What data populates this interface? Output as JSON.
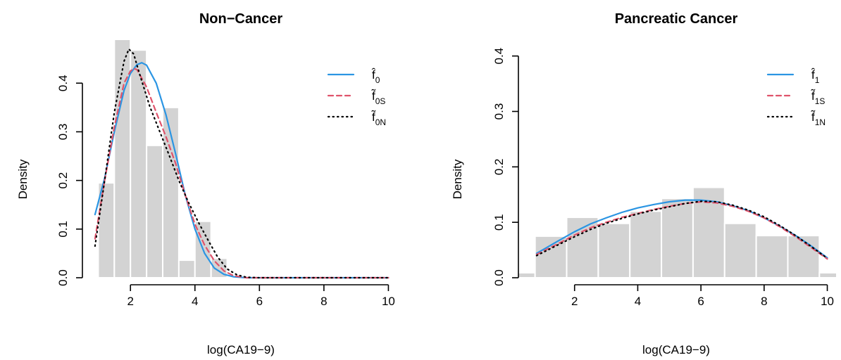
{
  "figure": {
    "colors": {
      "bar_fill": "#d3d3d3",
      "bar_stroke": "#ffffff"
    }
  },
  "chart_data": [
    {
      "type": "histogram-with-density",
      "title": "Non−Cancer",
      "xlabel": "log(CA19−9)",
      "ylabel": "Density",
      "xlim": [
        0.75,
        10.1
      ],
      "ylim": [
        0,
        0.49
      ],
      "xticks": [
        2,
        4,
        6,
        8,
        10
      ],
      "yticks": [
        0.0,
        0.1,
        0.2,
        0.3,
        0.4
      ],
      "xtick_labels": [
        "2",
        "4",
        "6",
        "8",
        "10"
      ],
      "ytick_labels": [
        "0.0",
        "0.1",
        "0.2",
        "0.3",
        "0.4"
      ],
      "histogram": {
        "bin_width": 0.5,
        "bins": [
          {
            "x0": 1.0,
            "x1": 1.5,
            "density": 0.195
          },
          {
            "x0": 1.5,
            "x1": 2.0,
            "density": 0.49
          },
          {
            "x0": 2.0,
            "x1": 2.5,
            "density": 0.468
          },
          {
            "x0": 2.5,
            "x1": 3.0,
            "density": 0.272
          },
          {
            "x0": 3.0,
            "x1": 3.5,
            "density": 0.35
          },
          {
            "x0": 3.5,
            "x1": 4.0,
            "density": 0.036
          },
          {
            "x0": 4.0,
            "x1": 4.5,
            "density": 0.116
          },
          {
            "x0": 4.5,
            "x1": 5.0,
            "density": 0.04
          }
        ]
      },
      "legend": {
        "position": "top-right",
        "entries": [
          {
            "symbol": "f̂",
            "subscript": "0",
            "color": "#2b95e3",
            "style": "solid"
          },
          {
            "symbol": "f̃",
            "subscript": "0S",
            "color": "#df536b",
            "style": "dashed"
          },
          {
            "symbol": "f̃",
            "subscript": "0N",
            "color": "#000000",
            "style": "dotted"
          }
        ]
      },
      "series": [
        {
          "color": "#2b95e3",
          "style": "solid",
          "x": [
            0.9,
            1.2,
            1.5,
            1.8,
            2.0,
            2.2,
            2.35,
            2.5,
            2.8,
            3.1,
            3.4,
            3.7,
            4.0,
            4.3,
            4.6,
            4.9,
            5.2,
            5.6,
            6.0,
            7.0,
            8.0,
            9.0,
            10.0
          ],
          "y": [
            0.13,
            0.205,
            0.3,
            0.385,
            0.42,
            0.438,
            0.442,
            0.437,
            0.4,
            0.335,
            0.255,
            0.17,
            0.1,
            0.05,
            0.02,
            0.007,
            0.002,
            0.0,
            0.0,
            0.0,
            0.0,
            0.0,
            0.0
          ]
        },
        {
          "color": "#df536b",
          "style": "dashed",
          "x": [
            0.9,
            1.2,
            1.5,
            1.8,
            2.0,
            2.1,
            2.2,
            2.5,
            2.8,
            3.1,
            3.4,
            3.7,
            4.0,
            4.3,
            4.6,
            4.9,
            5.2,
            5.6,
            6.0,
            7.0,
            8.0,
            9.0,
            10.0
          ],
          "y": [
            0.08,
            0.2,
            0.31,
            0.4,
            0.425,
            0.43,
            0.428,
            0.392,
            0.34,
            0.29,
            0.235,
            0.17,
            0.11,
            0.067,
            0.035,
            0.014,
            0.004,
            0.0,
            0.0,
            0.0,
            0.0,
            0.0,
            0.0
          ]
        },
        {
          "color": "#000000",
          "style": "dotted",
          "x": [
            0.9,
            1.2,
            1.5,
            1.8,
            1.95,
            2.1,
            2.3,
            2.6,
            2.9,
            3.2,
            3.5,
            3.8,
            4.1,
            4.4,
            4.7,
            5.0,
            5.3,
            5.6,
            6.0,
            7.0,
            8.0,
            9.0,
            10.0
          ],
          "y": [
            0.065,
            0.2,
            0.34,
            0.445,
            0.47,
            0.46,
            0.415,
            0.352,
            0.302,
            0.252,
            0.2,
            0.155,
            0.115,
            0.078,
            0.043,
            0.018,
            0.006,
            0.001,
            0.0,
            0.0,
            0.0,
            0.0,
            0.0
          ]
        }
      ]
    },
    {
      "type": "histogram-with-density",
      "title": "Pancreatic Cancer",
      "xlabel": "log(CA19−9)",
      "ylabel": "Density",
      "xlim": [
        0.2,
        10.3
      ],
      "ylim": [
        0,
        0.43
      ],
      "xticks": [
        2,
        4,
        6,
        8,
        10
      ],
      "yticks": [
        0.0,
        0.1,
        0.2,
        0.3,
        0.4
      ],
      "xtick_labels": [
        "2",
        "4",
        "6",
        "8",
        "10"
      ],
      "ytick_labels": [
        "0.0",
        "0.1",
        "0.2",
        "0.3",
        "0.4"
      ],
      "histogram": {
        "bin_width": 1,
        "bins": [
          {
            "x0": -0.25,
            "x1": 0.75,
            "density": 0.009
          },
          {
            "x0": 0.75,
            "x1": 1.75,
            "density": 0.075
          },
          {
            "x0": 1.75,
            "x1": 2.75,
            "density": 0.109
          },
          {
            "x0": 2.75,
            "x1": 3.75,
            "density": 0.098
          },
          {
            "x0": 3.75,
            "x1": 4.75,
            "density": 0.12
          },
          {
            "x0": 4.75,
            "x1": 5.75,
            "density": 0.143
          },
          {
            "x0": 5.75,
            "x1": 6.75,
            "density": 0.163
          },
          {
            "x0": 6.75,
            "x1": 7.75,
            "density": 0.098
          },
          {
            "x0": 7.75,
            "x1": 8.75,
            "density": 0.076
          },
          {
            "x0": 8.75,
            "x1": 9.75,
            "density": 0.076
          },
          {
            "x0": 9.75,
            "x1": 10.75,
            "density": 0.009
          }
        ]
      },
      "legend": {
        "position": "top-right",
        "entries": [
          {
            "symbol": "f̂",
            "subscript": "1",
            "color": "#2b95e3",
            "style": "solid"
          },
          {
            "symbol": "f̃",
            "subscript": "1S",
            "color": "#df536b",
            "style": "dashed"
          },
          {
            "symbol": "f̃",
            "subscript": "1N",
            "color": "#000000",
            "style": "dotted"
          }
        ]
      },
      "series": [
        {
          "color": "#2b95e3",
          "style": "solid",
          "x": [
            0.8,
            1.5,
            2.0,
            2.5,
            3.0,
            3.5,
            4.0,
            4.5,
            5.0,
            5.5,
            6.0,
            6.5,
            7.0,
            7.5,
            8.0,
            8.5,
            9.0,
            9.5,
            10.0
          ],
          "y": [
            0.044,
            0.067,
            0.083,
            0.097,
            0.108,
            0.118,
            0.126,
            0.132,
            0.137,
            0.14,
            0.14,
            0.137,
            0.13,
            0.121,
            0.108,
            0.093,
            0.076,
            0.057,
            0.036
          ]
        },
        {
          "color": "#df536b",
          "style": "dashed",
          "x": [
            0.8,
            1.5,
            2.0,
            2.5,
            3.0,
            3.5,
            4.0,
            4.5,
            5.0,
            5.5,
            6.0,
            6.5,
            7.0,
            7.5,
            8.0,
            8.5,
            9.0,
            9.5,
            10.0
          ],
          "y": [
            0.042,
            0.062,
            0.077,
            0.09,
            0.1,
            0.109,
            0.116,
            0.123,
            0.129,
            0.134,
            0.137,
            0.135,
            0.129,
            0.12,
            0.108,
            0.092,
            0.074,
            0.054,
            0.034
          ]
        },
        {
          "color": "#000000",
          "style": "dotted",
          "x": [
            0.8,
            1.5,
            2.0,
            2.5,
            3.0,
            3.5,
            4.0,
            4.5,
            5.0,
            5.5,
            6.0,
            6.5,
            7.0,
            7.5,
            8.0,
            8.5,
            9.0,
            9.5,
            10.0
          ],
          "y": [
            0.04,
            0.06,
            0.074,
            0.087,
            0.098,
            0.107,
            0.115,
            0.122,
            0.128,
            0.134,
            0.138,
            0.137,
            0.131,
            0.122,
            0.11,
            0.094,
            0.076,
            0.056,
            0.035
          ]
        }
      ]
    }
  ]
}
